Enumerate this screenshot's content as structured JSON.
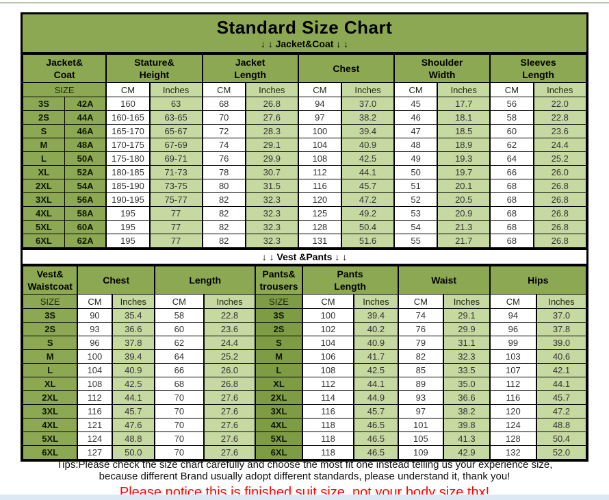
{
  "page": {
    "title": "Standard Size Chart",
    "jacket_banner": "↓ ↓  Jacket&Coat ↓ ↓",
    "vest_banner": "↓ ↓  Vest &Pants ↓ ↓",
    "tips_line1": "Tips:Please check the size chart carefully and choose the most fit one instead telling us your experience size,",
    "tips_line2": "because different Brand usually adopt different standards, please understand it, thank you!",
    "notice": "Please notice this is finished suit size, not your body size,thx!"
  },
  "colors": {
    "header_green": "#8CA852",
    "light_green": "#C6D9A1",
    "pants_size_green": "#7E9C44",
    "notice_red": "#FF0000"
  },
  "jacket_table": {
    "groups": [
      {
        "label": "Jacket&\nCoat",
        "span": 2
      },
      {
        "label": "Stature&\nHeight",
        "span": 2
      },
      {
        "label": "Jacket\nLength",
        "span": 2
      },
      {
        "label": "Chest",
        "span": 2
      },
      {
        "label": "Shoulder\nWidth",
        "span": 2
      },
      {
        "label": "Sleeves\nLength",
        "span": 2
      }
    ],
    "size_row": [
      {
        "label": "SIZE",
        "span": 2
      },
      {
        "label": "CM"
      },
      {
        "label": "Inches"
      },
      {
        "label": "CM"
      },
      {
        "label": "Inches"
      },
      {
        "label": "CM"
      },
      {
        "label": "Inches"
      },
      {
        "label": "CM"
      },
      {
        "label": "Inches"
      },
      {
        "label": "CM"
      },
      {
        "label": "Inches"
      }
    ],
    "rows": [
      [
        "3S",
        "42A",
        "160",
        "63",
        "68",
        "26.8",
        "94",
        "37.0",
        "45",
        "17.7",
        "56",
        "22.0"
      ],
      [
        "2S",
        "44A",
        "160-165",
        "63-65",
        "70",
        "27.6",
        "97",
        "38.2",
        "46",
        "18.1",
        "58",
        "22.8"
      ],
      [
        "S",
        "46A",
        "165-170",
        "65-67",
        "72",
        "28.3",
        "100",
        "39.4",
        "47",
        "18.5",
        "60",
        "23.6"
      ],
      [
        "M",
        "48A",
        "170-175",
        "67-69",
        "74",
        "29.1",
        "104",
        "40.9",
        "48",
        "18.9",
        "62",
        "24.4"
      ],
      [
        "L",
        "50A",
        "175-180",
        "69-71",
        "76",
        "29.9",
        "108",
        "42.5",
        "49",
        "19.3",
        "64",
        "25.2"
      ],
      [
        "XL",
        "52A",
        "180-185",
        "71-73",
        "78",
        "30.7",
        "112",
        "44.1",
        "50",
        "19.7",
        "66",
        "26.0"
      ],
      [
        "2XL",
        "54A",
        "185-190",
        "73-75",
        "80",
        "31.5",
        "116",
        "45.7",
        "51",
        "20.1",
        "68",
        "26.8"
      ],
      [
        "3XL",
        "56A",
        "190-195",
        "75-77",
        "82",
        "32.3",
        "120",
        "47.2",
        "52",
        "20.5",
        "68",
        "26.8"
      ],
      [
        "4XL",
        "58A",
        "195",
        "77",
        "82",
        "32.3",
        "125",
        "49.2",
        "53",
        "20.9",
        "68",
        "26.8"
      ],
      [
        "5XL",
        "60A",
        "195",
        "77",
        "82",
        "32.3",
        "128",
        "50.4",
        "54",
        "21.3",
        "68",
        "26.8"
      ],
      [
        "6XL",
        "62A",
        "195",
        "77",
        "82",
        "32.3",
        "131",
        "51.6",
        "55",
        "21.7",
        "68",
        "26.8"
      ]
    ]
  },
  "vest_table": {
    "groups": [
      {
        "label": "Vest&\nWaistcoat",
        "span": 1
      },
      {
        "label": "Chest",
        "span": 2
      },
      {
        "label": "Length",
        "span": 2
      },
      {
        "label": "Pants&\ntrousers",
        "span": 1
      },
      {
        "label": "Pants\nLength",
        "span": 2
      },
      {
        "label": "Waist",
        "span": 2
      },
      {
        "label": "Hips",
        "span": 2
      }
    ],
    "size_row": [
      {
        "label": "SIZE"
      },
      {
        "label": "CM"
      },
      {
        "label": "Inches"
      },
      {
        "label": "CM"
      },
      {
        "label": "Inches"
      },
      {
        "label": "SIZE",
        "dark": true
      },
      {
        "label": "CM"
      },
      {
        "label": "Inches"
      },
      {
        "label": "CM"
      },
      {
        "label": "Inches"
      },
      {
        "label": "CM"
      },
      {
        "label": "Inches"
      }
    ],
    "rows": [
      [
        "3S",
        "90",
        "35.4",
        "58",
        "22.8",
        "3S",
        "100",
        "39.4",
        "74",
        "29.1",
        "94",
        "37.0"
      ],
      [
        "2S",
        "93",
        "36.6",
        "60",
        "23.6",
        "2S",
        "102",
        "40.2",
        "76",
        "29.9",
        "96",
        "37.8"
      ],
      [
        "S",
        "96",
        "37.8",
        "62",
        "24.4",
        "S",
        "104",
        "40.9",
        "79",
        "31.1",
        "99",
        "39.0"
      ],
      [
        "M",
        "100",
        "39.4",
        "64",
        "25.2",
        "M",
        "106",
        "41.7",
        "82",
        "32.3",
        "103",
        "40.6"
      ],
      [
        "L",
        "104",
        "40.9",
        "66",
        "26.0",
        "L",
        "108",
        "42.5",
        "85",
        "33.5",
        "107",
        "42.1"
      ],
      [
        "XL",
        "108",
        "42.5",
        "68",
        "26.8",
        "XL",
        "112",
        "44.1",
        "89",
        "35.0",
        "112",
        "44.1"
      ],
      [
        "2XL",
        "112",
        "44.1",
        "70",
        "27.6",
        "2XL",
        "114",
        "44.9",
        "93",
        "36.6",
        "116",
        "45.7"
      ],
      [
        "3XL",
        "116",
        "45.7",
        "70",
        "27.6",
        "3XL",
        "116",
        "45.7",
        "97",
        "38.2",
        "120",
        "47.2"
      ],
      [
        "4XL",
        "121",
        "47.6",
        "70",
        "27.6",
        "4XL",
        "118",
        "46.5",
        "101",
        "39.8",
        "124",
        "48.8"
      ],
      [
        "5XL",
        "124",
        "48.8",
        "70",
        "27.6",
        "5XL",
        "118",
        "46.5",
        "105",
        "41.3",
        "128",
        "50.4"
      ],
      [
        "6XL",
        "127",
        "50.0",
        "70",
        "27.6",
        "6XL",
        "118",
        "46.5",
        "109",
        "42.9",
        "132",
        "52.0"
      ]
    ]
  }
}
